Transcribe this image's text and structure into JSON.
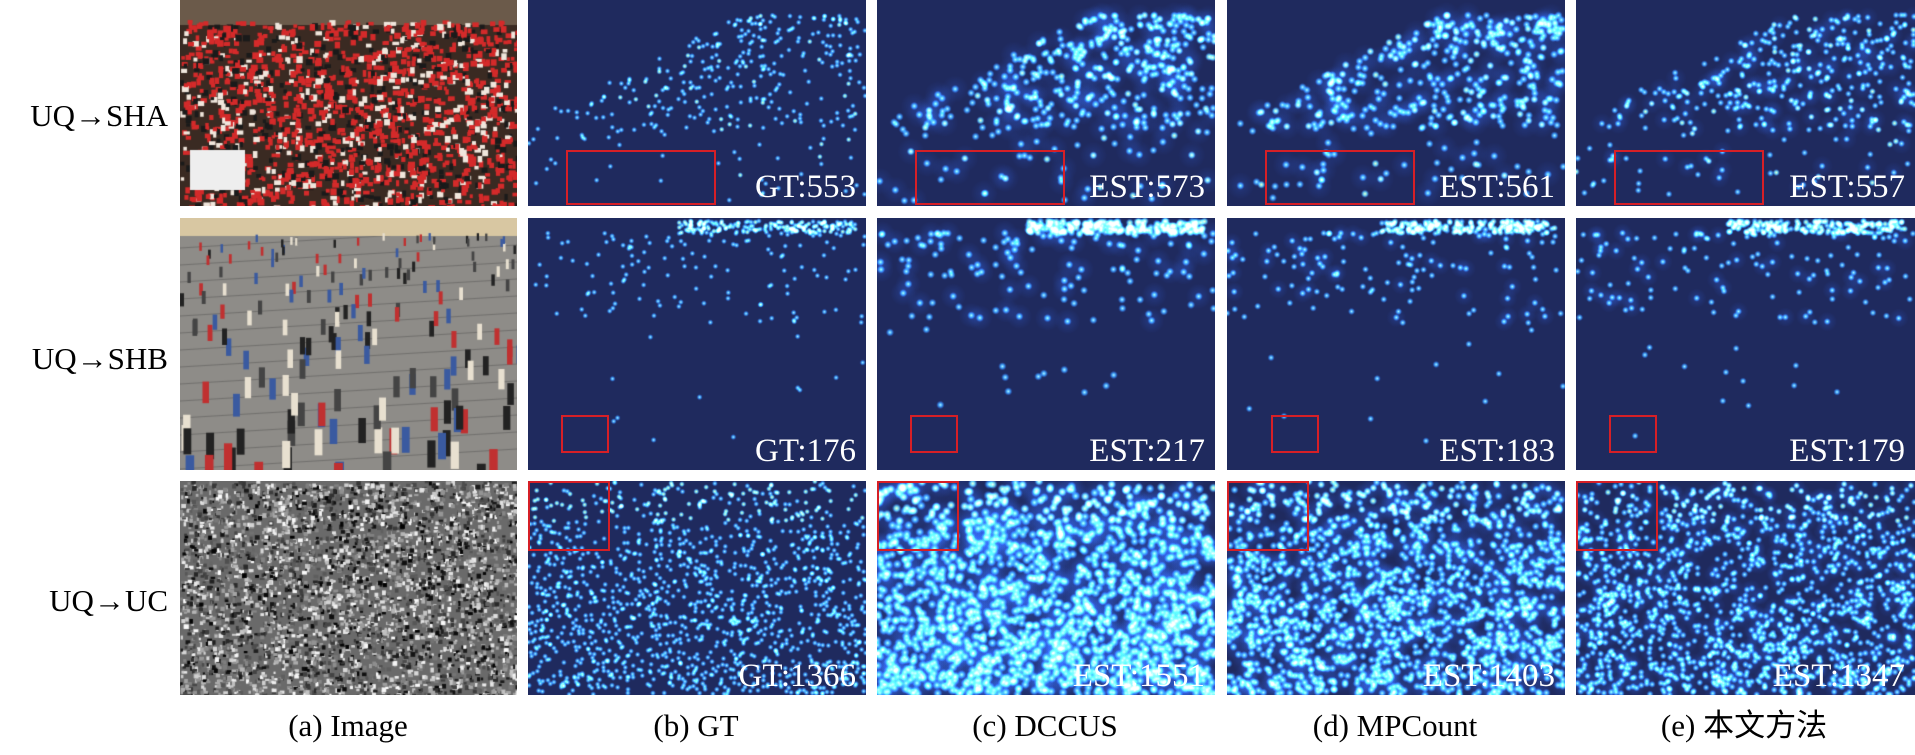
{
  "rows": [
    {
      "label": "UQ→SHA",
      "gt": "GT:553",
      "dccus": "EST:573",
      "mpcount": "EST:561",
      "ours": "EST:557"
    },
    {
      "label": "UQ→SHB",
      "gt": "GT:176",
      "dccus": "EST:217",
      "mpcount": "EST:183",
      "ours": "EST:179"
    },
    {
      "label": "UQ→UC",
      "gt": "GT:1366",
      "dccus": "EST:1551",
      "mpcount": "EST:1403",
      "ours": "EST:1347"
    }
  ],
  "captions": {
    "image": "(a) Image",
    "gt": "(b) GT",
    "dccus": "(c) DCCUS",
    "mpcount": "(d) MPCount",
    "ours": "(e) 本文方法"
  },
  "colors": {
    "background_map": "#1f2a5e",
    "highlight_box": "#d61f26",
    "count_text": "#ffffff"
  }
}
